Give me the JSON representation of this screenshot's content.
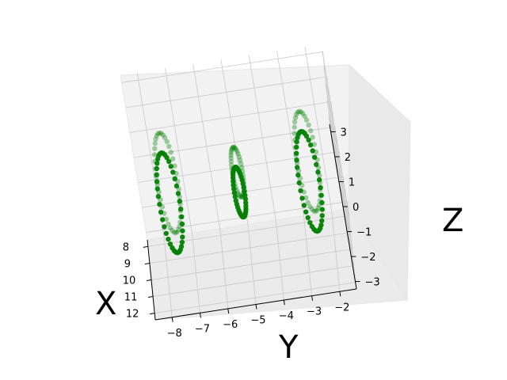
{
  "chart_data": {
    "type": "scatter",
    "projection": "3d",
    "grid": true,
    "point_color": "#008000",
    "pane_color": "#f2f2f2",
    "axes": {
      "x": {
        "label": "X",
        "ticks": [
          8,
          9,
          10,
          11,
          12
        ],
        "tick_labels": [
          "8",
          "9",
          "10",
          "11",
          "12"
        ],
        "range": [
          7.6,
          12.4
        ]
      },
      "y": {
        "label": "Y",
        "ticks": [
          -8,
          -7,
          -6,
          -5,
          -4,
          -3,
          -2
        ],
        "tick_labels": [
          "−8",
          "−7",
          "−6",
          "−5",
          "−4",
          "−3",
          "−2"
        ],
        "range": [
          -8.6,
          -1.4
        ]
      },
      "z": {
        "label": "Z",
        "ticks": [
          -3,
          -2,
          -1,
          0,
          1,
          2,
          3
        ],
        "tick_labels": [
          "−3",
          "−2",
          "−1",
          "0",
          "1",
          "2",
          "3"
        ],
        "range": [
          -3.3,
          3.3
        ]
      }
    },
    "series": [
      {
        "shape": "double helix (two loops)",
        "center": [
          10,
          -7.5,
          0
        ],
        "loop_radius": 2.0,
        "loop_offsets_x": [
          -0.6,
          0.6
        ],
        "points_per_loop": 40
      },
      {
        "shape": "double helix (two loops)",
        "center": [
          10,
          -5,
          0
        ],
        "loop_radius": 1.0,
        "loop_offsets_x": [
          -0.6,
          0.6
        ],
        "points_per_loop": 40
      },
      {
        "shape": "double helix (two loops)",
        "center": [
          10,
          -2.5,
          0
        ],
        "loop_radius": 2.0,
        "loop_offsets_x": [
          -0.6,
          0.6
        ],
        "points_per_loop": 40
      }
    ]
  }
}
